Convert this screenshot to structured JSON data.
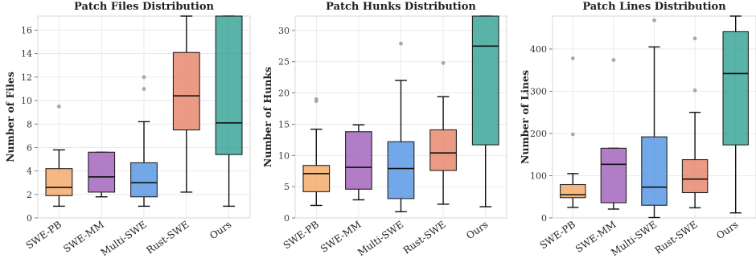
{
  "colors": {
    "SWE-PB": "#f4a460",
    "SWE-MM": "#9b59b6",
    "Multi-SWE": "#4a90e2",
    "Rust-SWE": "#e67e62",
    "Ours": "#2a9d8f",
    "outlier": "#a8a8a8",
    "grid": "#e4e4e4"
  },
  "chart_data": [
    {
      "type": "box",
      "title": "Patch Files Distribution",
      "ylabel": "Number of Files",
      "ylim": [
        0,
        17.2
      ],
      "yticks": [
        0,
        2,
        4,
        6,
        8,
        10,
        12,
        14,
        16
      ],
      "categories": [
        "SWE-PB",
        "SWE-MM",
        "Multi-SWE",
        "Rust-SWE",
        "Ours"
      ],
      "boxes": [
        {
          "whislo": 1.0,
          "q1": 1.9,
          "med": 2.6,
          "q3": 4.2,
          "whishi": 5.8,
          "fliers": [
            9.5
          ]
        },
        {
          "whislo": 1.8,
          "q1": 2.2,
          "med": 3.5,
          "q3": 5.6,
          "whishi": 5.6,
          "fliers": []
        },
        {
          "whislo": 1.0,
          "q1": 1.8,
          "med": 3.0,
          "q3": 4.7,
          "whishi": 8.2,
          "fliers": [
            11.0,
            12.0
          ]
        },
        {
          "whislo": 2.2,
          "q1": 7.5,
          "med": 10.4,
          "q3": 14.1,
          "whishi": 17.2,
          "fliers": []
        },
        {
          "whislo": 1.0,
          "q1": 5.4,
          "med": 8.1,
          "q3": 17.2,
          "whishi": 17.2,
          "fliers": []
        }
      ]
    },
    {
      "type": "box",
      "title": "Patch Hunks Distribution",
      "ylabel": "Number of Hunks",
      "ylim": [
        0,
        32.3
      ],
      "yticks": [
        0,
        5,
        10,
        15,
        20,
        25,
        30
      ],
      "categories": [
        "SWE-PB",
        "SWE-MM",
        "Multi-SWE",
        "Rust-SWE",
        "Ours"
      ],
      "boxes": [
        {
          "whislo": 2.0,
          "q1": 4.2,
          "med": 7.1,
          "q3": 8.4,
          "whishi": 14.2,
          "fliers": [
            18.7,
            19.0
          ]
        },
        {
          "whislo": 2.9,
          "q1": 4.6,
          "med": 8.1,
          "q3": 13.8,
          "whishi": 14.9,
          "fliers": []
        },
        {
          "whislo": 1.0,
          "q1": 3.1,
          "med": 7.9,
          "q3": 12.2,
          "whishi": 22.0,
          "fliers": [
            27.9
          ]
        },
        {
          "whislo": 2.2,
          "q1": 7.6,
          "med": 10.4,
          "q3": 14.1,
          "whishi": 19.4,
          "fliers": [
            24.8
          ]
        },
        {
          "whislo": 1.8,
          "q1": 11.7,
          "med": 27.5,
          "q3": 32.3,
          "whishi": 32.3,
          "fliers": []
        }
      ]
    },
    {
      "type": "box",
      "title": "Patch Lines Distribution",
      "ylabel": "Number of Lines",
      "ylim": [
        0,
        478
      ],
      "yticks": [
        0,
        100,
        200,
        300,
        400
      ],
      "categories": [
        "SWE-PB",
        "SWE-MM",
        "Multi-SWE",
        "Rust-SWE",
        "Ours"
      ],
      "boxes": [
        {
          "whislo": 25,
          "q1": 48,
          "med": 55,
          "q3": 79,
          "whishi": 105,
          "fliers": [
            198,
            378
          ]
        },
        {
          "whislo": 21,
          "q1": 36,
          "med": 127,
          "q3": 165,
          "whishi": 165,
          "fliers": [
            374
          ]
        },
        {
          "whislo": 1,
          "q1": 30,
          "med": 73,
          "q3": 192,
          "whishi": 405,
          "fliers": [
            468
          ]
        },
        {
          "whislo": 24,
          "q1": 60,
          "med": 92,
          "q3": 138,
          "whishi": 250,
          "fliers": [
            302,
            425
          ]
        },
        {
          "whislo": 12,
          "q1": 173,
          "med": 342,
          "q3": 441,
          "whishi": 478,
          "fliers": []
        }
      ]
    }
  ]
}
